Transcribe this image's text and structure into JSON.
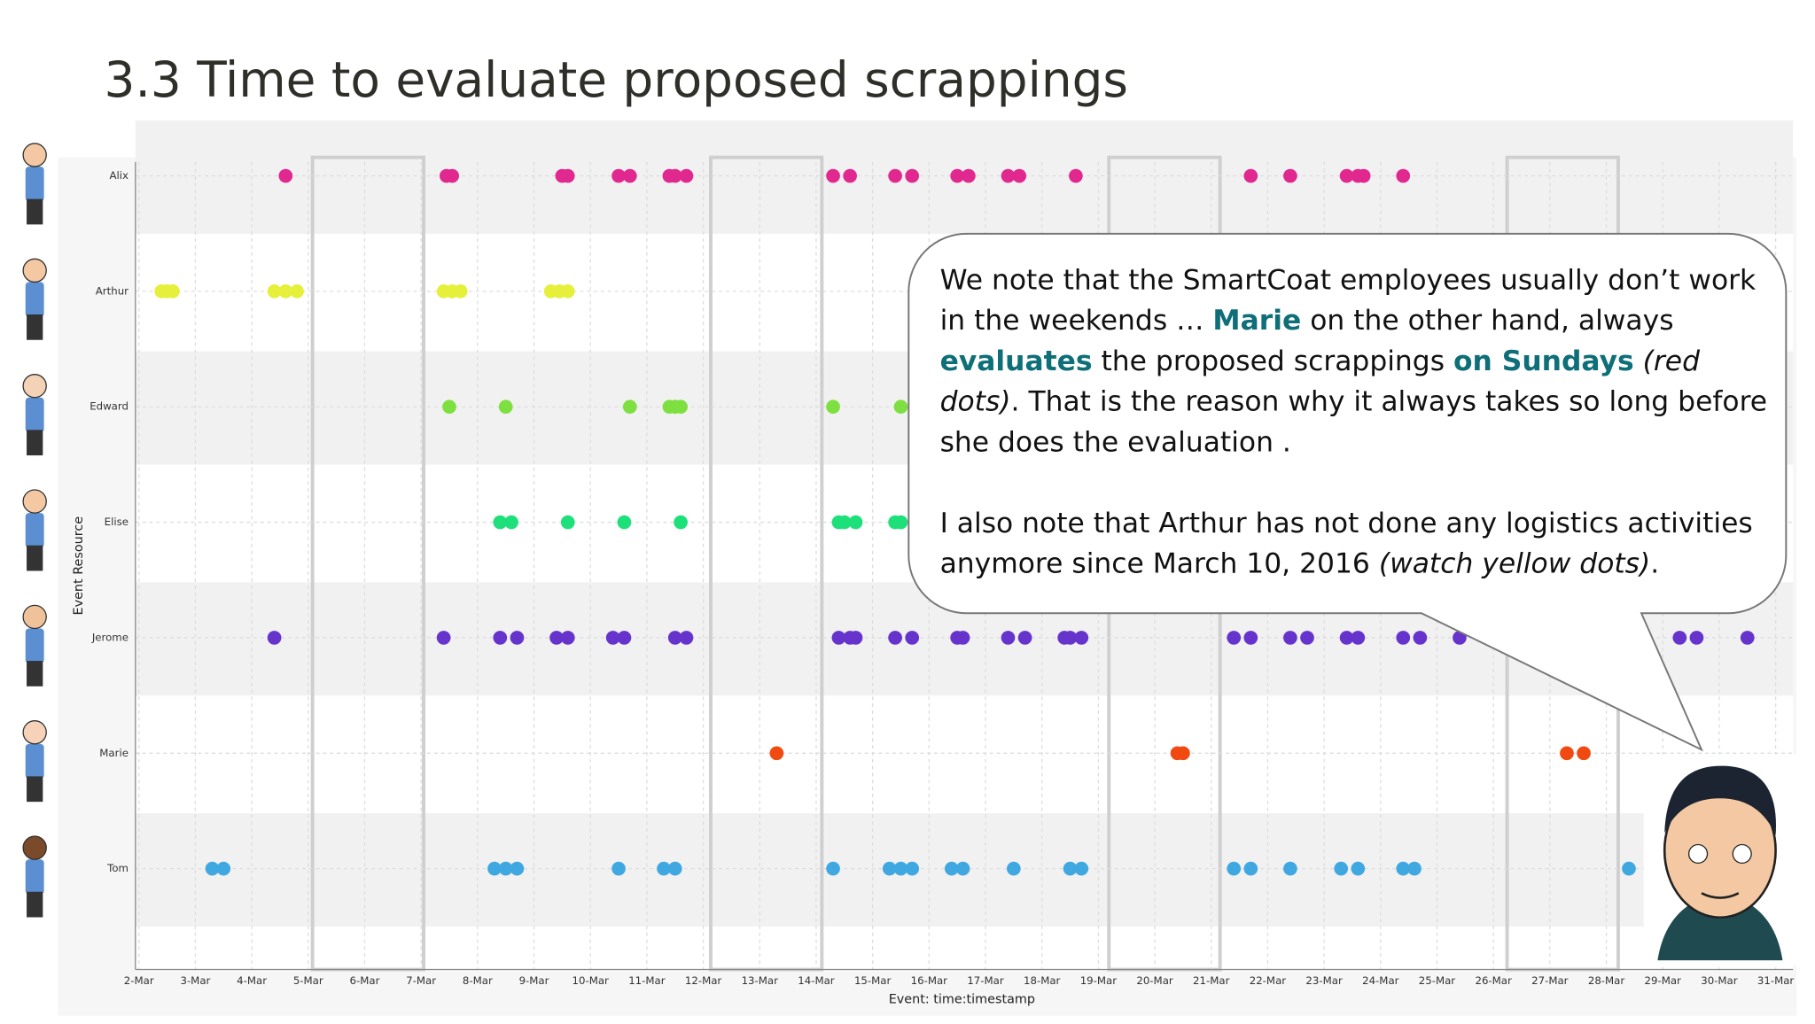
{
  "slide": {
    "title": "3.3 Time to evaluate proposed scrappings"
  },
  "callout": {
    "paragraphs": [
      [
        "We note that the SmartCoat employees usually don’t work in the weekends … ",
        {
          "text": "Marie",
          "style": "bold"
        },
        " on the other hand, always ",
        {
          "text": "evaluates",
          "style": "bold"
        },
        " the proposed scrappings ",
        {
          "text": "on Sundays",
          "style": "bold"
        },
        " ",
        {
          "text": "(red dots)",
          "style": "italic"
        },
        ". That is the reason why it always takes so long before she does the evaluation ."
      ],
      [
        "I also note that Arthur has not done any logistics activities anymore since March 10, 2016 ",
        {
          "text": "(watch yellow dots)",
          "style": "italic"
        },
        "."
      ]
    ]
  },
  "chart_data": {
    "type": "scatter",
    "x_label": "Event: time:timestamp",
    "y_label": "Event Resource",
    "xlim": [
      2,
      31
    ],
    "xticks": [
      {
        "value": 2,
        "label": "2-Mar"
      },
      {
        "value": 3,
        "label": "3-Mar"
      },
      {
        "value": 4,
        "label": "4-Mar"
      },
      {
        "value": 5,
        "label": "5-Mar"
      },
      {
        "value": 6,
        "label": "6-Mar"
      },
      {
        "value": 7,
        "label": "7-Mar"
      },
      {
        "value": 8,
        "label": "8-Mar"
      },
      {
        "value": 9,
        "label": "9-Mar"
      },
      {
        "value": 10,
        "label": "10-Mar"
      },
      {
        "value": 11,
        "label": "11-Mar"
      },
      {
        "value": 12,
        "label": "12-Mar"
      },
      {
        "value": 13,
        "label": "13-Mar"
      },
      {
        "value": 14,
        "label": "14-Mar"
      },
      {
        "value": 15,
        "label": "15-Mar"
      },
      {
        "value": 16,
        "label": "16-Mar"
      },
      {
        "value": 17,
        "label": "17-Mar"
      },
      {
        "value": 18,
        "label": "18-Mar"
      },
      {
        "value": 19,
        "label": "19-Mar"
      },
      {
        "value": 20,
        "label": "20-Mar"
      },
      {
        "value": 21,
        "label": "21-Mar"
      },
      {
        "value": 22,
        "label": "22-Mar"
      },
      {
        "value": 23,
        "label": "23-Mar"
      },
      {
        "value": 24,
        "label": "24-Mar"
      },
      {
        "value": 25,
        "label": "25-Mar"
      },
      {
        "value": 26,
        "label": "26-Mar"
      },
      {
        "value": 27,
        "label": "27-Mar"
      },
      {
        "value": 28,
        "label": "28-Mar"
      },
      {
        "value": 29,
        "label": "29-Mar"
      },
      {
        "value": 30,
        "label": "30-Mar"
      },
      {
        "value": 31,
        "label": "31-Mar"
      }
    ],
    "grid": true,
    "series": [
      {
        "name": "Alix",
        "color": "#e0288f",
        "values": [
          4.6,
          7.45,
          7.55,
          9.5,
          9.6,
          10.5,
          10.7,
          11.4,
          11.5,
          11.7,
          14.3,
          14.6,
          15.4,
          15.7,
          16.5,
          16.7,
          17.4,
          17.6,
          18.6,
          21.7,
          22.4,
          23.4,
          23.6,
          23.7,
          24.4
        ]
      },
      {
        "name": "Arthur",
        "color": "#e6ef3a",
        "values": [
          2.4,
          2.5,
          2.6,
          4.4,
          4.6,
          4.8,
          7.4,
          7.55,
          7.7,
          9.3,
          9.45,
          9.6
        ]
      },
      {
        "name": "Edward",
        "color": "#7ee040",
        "values": [
          7.5,
          8.5,
          10.7,
          11.4,
          11.5,
          11.6,
          14.3,
          15.5
        ]
      },
      {
        "name": "Elise",
        "color": "#1ee07a",
        "values": [
          8.4,
          8.6,
          9.6,
          10.6,
          11.6,
          14.4,
          14.5,
          14.7,
          15.4,
          15.5
        ]
      },
      {
        "name": "Jerome",
        "color": "#6633cc",
        "values": [
          4.4,
          7.4,
          8.4,
          8.7,
          9.4,
          9.6,
          10.4,
          10.6,
          11.5,
          11.7,
          14.4,
          14.6,
          14.7,
          15.4,
          15.7,
          16.5,
          16.6,
          17.4,
          17.7,
          18.4,
          18.5,
          18.7,
          21.4,
          21.7,
          22.4,
          22.7,
          23.4,
          23.6,
          24.4,
          24.7,
          25.4,
          29.3,
          29.6,
          30.5
        ]
      },
      {
        "name": "Marie",
        "color": "#f04a10",
        "values": [
          13.3,
          20.4,
          20.5,
          27.3,
          27.6
        ]
      },
      {
        "name": "Tom",
        "color": "#40a8e0",
        "values": [
          3.3,
          3.5,
          8.3,
          8.5,
          8.7,
          10.5,
          11.3,
          11.5,
          14.3,
          15.3,
          15.5,
          15.7,
          16.4,
          16.6,
          17.5,
          18.5,
          18.7,
          21.4,
          21.7,
          22.4,
          23.3,
          23.6,
          24.4,
          24.6,
          28.4
        ]
      }
    ]
  }
}
